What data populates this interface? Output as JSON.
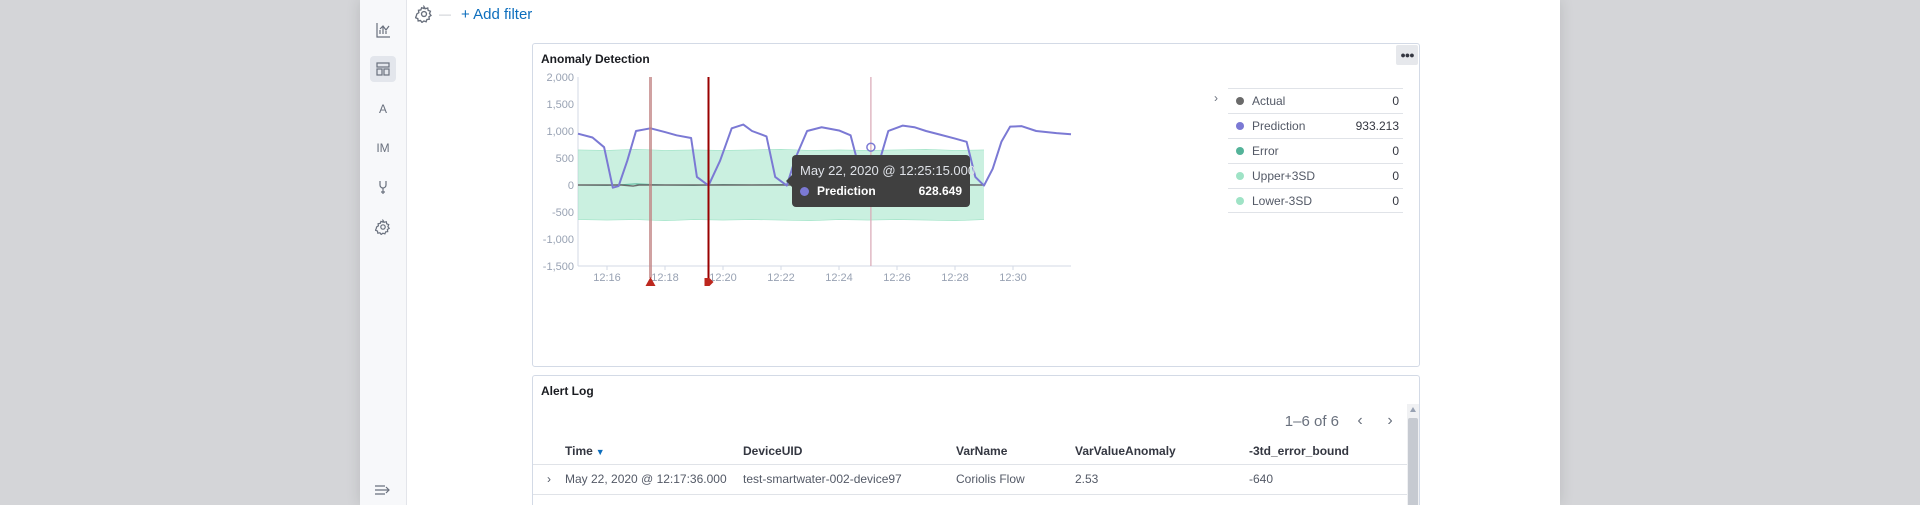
{
  "filter_bar": {
    "add_filter_label": "+ Add filter"
  },
  "sidebar": {
    "items": [
      {
        "name": "visualize",
        "icon": "chart-icon"
      },
      {
        "name": "dashboard",
        "icon": "dashboard-icon",
        "active": true
      },
      {
        "name": "a",
        "label": "A"
      },
      {
        "name": "im",
        "label": "IM"
      },
      {
        "name": "dev-tools",
        "icon": "wrench-icon"
      },
      {
        "name": "management",
        "icon": "gear-icon"
      }
    ],
    "collapse_icon": "collapse-icon"
  },
  "chart_panel": {
    "title": "Anomaly Detection",
    "menu_icon": "ellipsis-icon"
  },
  "chart_data": {
    "type": "line",
    "title": "",
    "xlabel": "",
    "ylabel": "",
    "x_ticks": [
      "12:16",
      "12:18",
      "12:20",
      "12:22",
      "12:24",
      "12:26",
      "12:28",
      "12:30"
    ],
    "y_ticks": [
      "2,000",
      "1,500",
      "1,000",
      "500",
      "0",
      "-500",
      "-1,000",
      "-1,500"
    ],
    "ylim": [
      -1500,
      2000
    ],
    "xlim_minutes": [
      15.0,
      32.0
    ],
    "series": [
      {
        "name": "Actual",
        "color": "#6a6a6a",
        "x": [
          15.0,
          15.8,
          16.0,
          16.3,
          16.5,
          16.9,
          17.1,
          17.5,
          18.3,
          18.8,
          18.9,
          19.3,
          19.5,
          19.8,
          20.5,
          20.9,
          21.2,
          21.8,
          22.0,
          22.3,
          22.8,
          23.2,
          23.4,
          23.8,
          24.8,
          25.2,
          25.4,
          25.6,
          26.0,
          26.8,
          27.0,
          28.5,
          28.6,
          29.0
        ],
        "y": [
          0,
          0,
          0,
          0,
          0,
          -20,
          0,
          0,
          0,
          0,
          0,
          0,
          0,
          0,
          0,
          0,
          0,
          0,
          0,
          0,
          0,
          0,
          0,
          0,
          0,
          0,
          0,
          0,
          0,
          0,
          0,
          0,
          0,
          0
        ]
      },
      {
        "name": "Prediction",
        "color": "#7b79d4",
        "x": [
          15.0,
          15.5,
          15.9,
          16.2,
          16.4,
          16.7,
          17.0,
          17.5,
          18.0,
          18.4,
          18.9,
          19.1,
          19.5,
          19.9,
          20.3,
          20.7,
          21.0,
          21.5,
          21.8,
          22.2,
          22.5,
          22.9,
          23.4,
          24.0,
          24.4,
          24.8,
          25.1,
          25.4,
          25.7,
          26.2,
          26.6,
          27.0,
          27.5,
          28.0,
          28.4,
          28.7,
          29.0,
          29.3,
          29.6,
          29.9,
          30.3,
          30.8,
          31.5,
          32.0
        ],
        "y": [
          950,
          880,
          700,
          -50,
          -20,
          450,
          1000,
          1050,
          980,
          920,
          870,
          150,
          -10,
          450,
          1050,
          1120,
          1000,
          900,
          150,
          -10,
          500,
          1000,
          1070,
          1010,
          920,
          100,
          -10,
          450,
          1000,
          1100,
          1070,
          1000,
          930,
          860,
          800,
          150,
          -10,
          300,
          800,
          1080,
          1090,
          1000,
          960,
          940
        ]
      },
      {
        "name": "Error",
        "color": "#54b399",
        "x": [
          15.0,
          16.0,
          17.0,
          18.0,
          19.0,
          20.0,
          21.0,
          22.0,
          23.0,
          24.0,
          25.0,
          26.0,
          27.0,
          28.0,
          29.0
        ],
        "y": [
          0,
          -10,
          20,
          0,
          -10,
          10,
          0,
          10,
          -10,
          0,
          10,
          -10,
          0,
          10,
          0
        ]
      },
      {
        "name": "Upper+3SD",
        "color": "#9fe3c6",
        "x": [
          15.0,
          16.0,
          17.0,
          18.0,
          19.0,
          20.0,
          21.0,
          22.0,
          23.0,
          24.0,
          25.0,
          26.0,
          27.0,
          28.0,
          29.0
        ],
        "y": [
          650,
          640,
          660,
          640,
          650,
          640,
          650,
          660,
          640,
          650,
          640,
          650,
          660,
          640,
          650
        ]
      },
      {
        "name": "Lower-3SD",
        "color": "#9fe3c6",
        "x": [
          15.0,
          16.0,
          17.0,
          18.0,
          19.0,
          20.0,
          21.0,
          22.0,
          23.0,
          24.0,
          25.0,
          26.0,
          27.0,
          28.0,
          29.0
        ],
        "y": [
          -640,
          -650,
          -640,
          -660,
          -640,
          -650,
          -640,
          -650,
          -660,
          -640,
          -650,
          -640,
          -650,
          -660,
          -640
        ]
      }
    ],
    "annotation_lines": [
      {
        "x": 17.5,
        "color": "#c08282",
        "style": "range"
      },
      {
        "x": 19.5,
        "color": "#9a0000",
        "style": "solid"
      },
      {
        "x": 25.1,
        "color": "#d9a7b5",
        "style": "thin"
      }
    ],
    "markers": [
      {
        "x": 17.5,
        "icon": "warning-icon",
        "color": "#bd271e"
      },
      {
        "x": 19.5,
        "icon": "tag-icon",
        "color": "#bd271e"
      }
    ],
    "grid": false,
    "legend_placement": "right"
  },
  "legend": {
    "items": [
      {
        "name": "Actual",
        "value": "0",
        "color": "#6a6a6a"
      },
      {
        "name": "Prediction",
        "value": "933.213",
        "color": "#7b79d4"
      },
      {
        "name": "Error",
        "value": "0",
        "color": "#54b399"
      },
      {
        "name": "Upper+3SD",
        "value": "0",
        "color": "#9fe3c6"
      },
      {
        "name": "Lower-3SD",
        "value": "0",
        "color": "#9fe3c6"
      }
    ]
  },
  "tooltip": {
    "title": "May 22, 2020 @ 12:25:15.000",
    "series": "Prediction",
    "value": "628.649",
    "color": "#7b79d4"
  },
  "alert_panel": {
    "title": "Alert Log",
    "pagination": "1–6 of 6",
    "columns": [
      "Time",
      "DeviceUID",
      "VarName",
      "VarValueAnomaly",
      "-3td_error_bound"
    ],
    "rows": [
      [
        "May 22, 2020 @ 12:17:36.000",
        "test-smartwater-002-device97",
        "Coriolis Flow",
        "2.53",
        "-640"
      ]
    ]
  }
}
